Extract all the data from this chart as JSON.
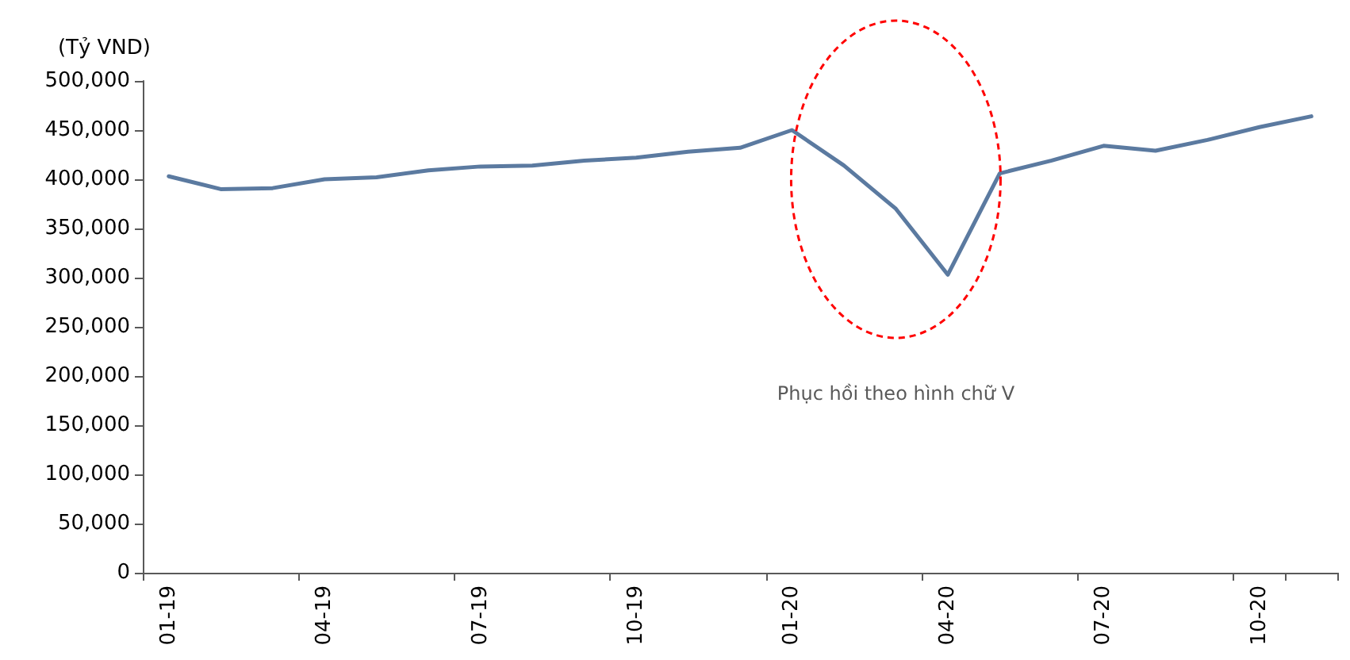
{
  "chart_data": {
    "type": "line",
    "ylabel": "(Tỷ VND)",
    "categories": [
      "01-19",
      null,
      null,
      "04-19",
      null,
      null,
      "07-19",
      null,
      null,
      "10-19",
      null,
      null,
      "01-20",
      null,
      null,
      "04-20",
      null,
      null,
      "07-20",
      null,
      null,
      "10-20",
      null
    ],
    "series": [
      {
        "color": "#5b7aa0",
        "values": [
          403000,
          390000,
          391000,
          400000,
          402000,
          409000,
          413000,
          414000,
          419000,
          422000,
          428000,
          432000,
          450000,
          414000,
          370000,
          303000,
          406000,
          419000,
          434000,
          429000,
          440000,
          453000,
          464000
        ]
      }
    ],
    "ylim": [
      0,
      500000
    ],
    "yticks": [
      0,
      {
        "value": 50000,
        "label": "50,000"
      },
      {
        "value": 100000,
        "label": "100,000"
      },
      {
        "value": 150000,
        "label": "150,000"
      },
      {
        "value": 200000,
        "label": "200,000"
      },
      {
        "value": 250000,
        "label": "250,000"
      },
      {
        "value": 300000,
        "label": "300,000"
      },
      {
        "value": 350000,
        "label": "350,000"
      },
      {
        "value": 400000,
        "label": "400,000"
      },
      {
        "value": 450000,
        "label": "450,000"
      },
      {
        "value": 500000,
        "label": "500,000"
      }
    ],
    "grid": false,
    "marker": "none",
    "line_style": "solid",
    "annotations": [
      "Phục hồi theo hình chữ V"
    ]
  }
}
